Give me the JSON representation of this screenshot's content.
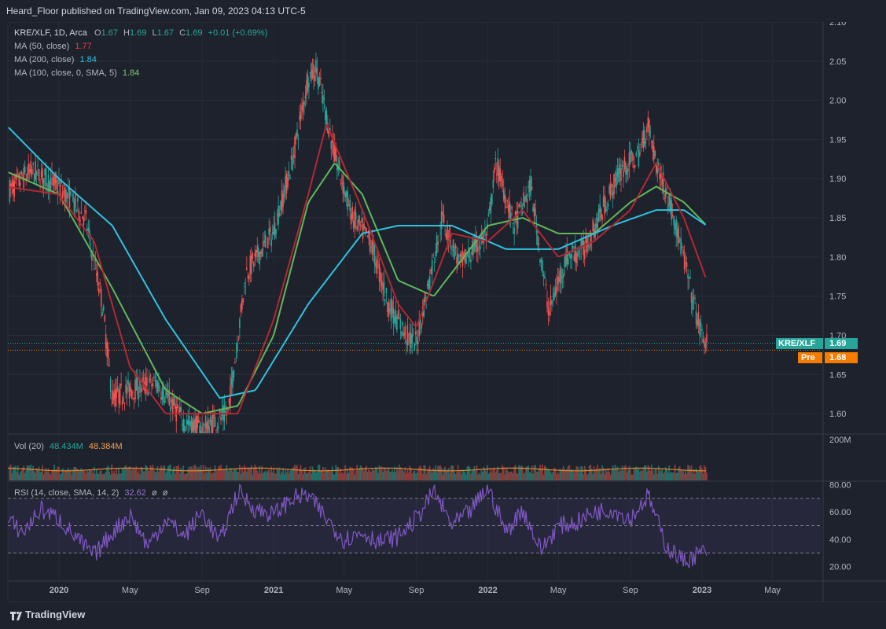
{
  "header": {
    "published": "Heard_Floor published on TradingView.com, Jan 09, 2023 04:13 UTC-5"
  },
  "legend": {
    "symbol": "KRE/XLF, 1D, Arca",
    "ohlc": {
      "o_label": "O",
      "o": "1.67",
      "h_label": "H",
      "h": "1.69",
      "l_label": "L",
      "l": "1.67",
      "c_label": "C",
      "c": "1.69",
      "change": "+0.01 (+0.69%)"
    },
    "ma50": {
      "label": "MA (50, close)",
      "value": "1.77"
    },
    "ma200": {
      "label": "MA (200, close)",
      "value": "1.84"
    },
    "ma100": {
      "label": "MA (100, close, 0, SMA, 5)",
      "value": "1.84"
    }
  },
  "volume": {
    "label": "Vol (20)",
    "value": "48.434M",
    "ma_value": "48.384M"
  },
  "rsi": {
    "label": "RSI (14, close, SMA, 14, 2)",
    "value": "32.62",
    "extra1": "ø",
    "extra2": "ø"
  },
  "price_tags": {
    "last_label": "KRE/XLF",
    "last_value": "1.69",
    "pre_label": "Pre",
    "pre_value": "1.68"
  },
  "footer": {
    "brand": "TradingView"
  },
  "colors": {
    "background": "#1e222d",
    "up": "#26a69a",
    "down": "#ef5350",
    "ma50": "#b22833",
    "ma200": "#2fc2de",
    "ma100": "#5fb75a",
    "rsi": "#7e57c2",
    "vol_ma": "#e08a2a",
    "last_tag": "#26a69a",
    "pre_tag": "#f57c00"
  },
  "chart_data": [
    {
      "type": "line",
      "pane": "price",
      "title": "KRE/XLF, 1D, Arca",
      "y_axis_ticks": [
        1.6,
        1.65,
        1.7,
        1.75,
        1.8,
        1.85,
        1.9,
        1.95,
        2.0,
        2.05,
        2.1
      ],
      "ylim": [
        1.575,
        2.1
      ],
      "x_axis_ticks": [
        "2020",
        "May",
        "Sep",
        "2021",
        "May",
        "Sep",
        "2022",
        "May",
        "Sep",
        "2023",
        "May"
      ],
      "grid": true,
      "series": [
        {
          "name": "KRE/XLF",
          "x": [
            "2019-10-01",
            "2019-11-15",
            "2019-12-31",
            "2020-02-15",
            "2020-03-15",
            "2020-04-01",
            "2020-05-01",
            "2020-06-15",
            "2020-08-01",
            "2020-09-01",
            "2020-10-15",
            "2020-11-15",
            "2020-12-31",
            "2021-02-01",
            "2021-03-01",
            "2021-03-15",
            "2021-04-15",
            "2021-05-15",
            "2021-06-15",
            "2021-07-15",
            "2021-08-15",
            "2021-09-01",
            "2021-10-15",
            "2021-11-15",
            "2021-12-31",
            "2022-01-15",
            "2022-02-15",
            "2022-03-15",
            "2022-04-15",
            "2022-05-15",
            "2022-06-15",
            "2022-07-15",
            "2022-08-15",
            "2022-09-15",
            "2022-10-01",
            "2022-10-15",
            "2022-11-15",
            "2022-12-15",
            "2022-12-31",
            "2023-01-09"
          ],
          "values": [
            1.88,
            1.91,
            1.89,
            1.85,
            1.74,
            1.62,
            1.63,
            1.64,
            1.59,
            1.58,
            1.6,
            1.78,
            1.83,
            1.92,
            2.03,
            2.04,
            1.93,
            1.85,
            1.82,
            1.74,
            1.7,
            1.69,
            1.85,
            1.79,
            1.83,
            1.92,
            1.84,
            1.89,
            1.73,
            1.8,
            1.81,
            1.86,
            1.91,
            1.93,
            1.97,
            1.92,
            1.85,
            1.75,
            1.7,
            1.69
          ]
        },
        {
          "name": "MA (50, close)",
          "x": [
            "2019-10-01",
            "2019-12-31",
            "2020-03-01",
            "2020-05-01",
            "2020-07-01",
            "2020-09-01",
            "2020-11-01",
            "2021-01-01",
            "2021-03-01",
            "2021-04-01",
            "2021-06-01",
            "2021-08-01",
            "2021-09-01",
            "2021-11-01",
            "2022-01-01",
            "2022-03-01",
            "2022-05-01",
            "2022-07-01",
            "2022-09-01",
            "2022-10-15",
            "2022-12-01",
            "2023-01-09"
          ],
          "values": [
            1.89,
            1.88,
            1.82,
            1.66,
            1.6,
            1.6,
            1.6,
            1.72,
            1.88,
            1.97,
            1.86,
            1.74,
            1.71,
            1.83,
            1.82,
            1.86,
            1.8,
            1.82,
            1.86,
            1.92,
            1.85,
            1.77
          ]
        },
        {
          "name": "MA (200, close)",
          "x": [
            "2019-10-01",
            "2020-01-01",
            "2020-04-01",
            "2020-07-01",
            "2020-10-01",
            "2020-12-01",
            "2021-03-01",
            "2021-06-01",
            "2021-08-01",
            "2021-11-01",
            "2022-02-01",
            "2022-05-01",
            "2022-08-01",
            "2022-10-15",
            "2022-12-01",
            "2023-01-09"
          ],
          "values": [
            1.97,
            1.9,
            1.84,
            1.72,
            1.62,
            1.63,
            1.74,
            1.83,
            1.84,
            1.84,
            1.81,
            1.81,
            1.84,
            1.86,
            1.86,
            1.84
          ]
        },
        {
          "name": "MA (100, close, 0, SMA, 5)",
          "x": [
            "2019-10-01",
            "2020-01-01",
            "2020-04-01",
            "2020-07-01",
            "2020-09-01",
            "2020-11-01",
            "2021-01-01",
            "2021-03-01",
            "2021-04-15",
            "2021-06-01",
            "2021-08-01",
            "2021-10-01",
            "2022-01-01",
            "2022-03-01",
            "2022-05-01",
            "2022-07-01",
            "2022-09-01",
            "2022-10-15",
            "2022-12-01",
            "2023-01-09"
          ],
          "values": [
            1.91,
            1.88,
            1.76,
            1.63,
            1.6,
            1.61,
            1.7,
            1.87,
            1.92,
            1.88,
            1.77,
            1.75,
            1.84,
            1.85,
            1.83,
            1.83,
            1.87,
            1.89,
            1.87,
            1.84
          ]
        }
      ],
      "current_price": 1.69,
      "pre_price": 1.68
    },
    {
      "type": "bar",
      "pane": "volume",
      "title": "Vol (20)",
      "y_axis_ticks": [
        "200M"
      ],
      "ylim": [
        0,
        200
      ],
      "unit": "M",
      "current": 48.434,
      "ma_current": 48.384
    },
    {
      "type": "line",
      "pane": "rsi",
      "title": "RSI (14, close, SMA, 14, 2)",
      "y_axis_ticks": [
        20.0,
        40.0,
        60.0,
        80.0
      ],
      "ylim": [
        10,
        82
      ],
      "bands": [
        30,
        50,
        70
      ],
      "series": [
        {
          "name": "RSI",
          "x": [
            "2019-10-01",
            "2019-11-01",
            "2019-12-01",
            "2020-01-01",
            "2020-02-01",
            "2020-03-01",
            "2020-04-01",
            "2020-05-01",
            "2020-06-01",
            "2020-07-01",
            "2020-08-01",
            "2020-09-01",
            "2020-10-01",
            "2020-11-01",
            "2020-12-01",
            "2021-01-01",
            "2021-02-01",
            "2021-03-01",
            "2021-04-01",
            "2021-05-01",
            "2021-06-01",
            "2021-07-01",
            "2021-08-01",
            "2021-09-01",
            "2021-10-01",
            "2021-11-01",
            "2021-12-01",
            "2022-01-01",
            "2022-02-01",
            "2022-03-01",
            "2022-04-01",
            "2022-05-01",
            "2022-06-01",
            "2022-07-01",
            "2022-08-01",
            "2022-09-01",
            "2022-10-01",
            "2022-11-01",
            "2022-12-01",
            "2023-01-09"
          ],
          "values": [
            55,
            45,
            62,
            55,
            40,
            28,
            45,
            58,
            35,
            55,
            42,
            60,
            38,
            75,
            62,
            58,
            70,
            72,
            55,
            40,
            45,
            38,
            42,
            55,
            75,
            50,
            60,
            78,
            45,
            62,
            32,
            50,
            52,
            60,
            62,
            55,
            72,
            35,
            24,
            32
          ]
        }
      ],
      "current": 32.62
    }
  ]
}
